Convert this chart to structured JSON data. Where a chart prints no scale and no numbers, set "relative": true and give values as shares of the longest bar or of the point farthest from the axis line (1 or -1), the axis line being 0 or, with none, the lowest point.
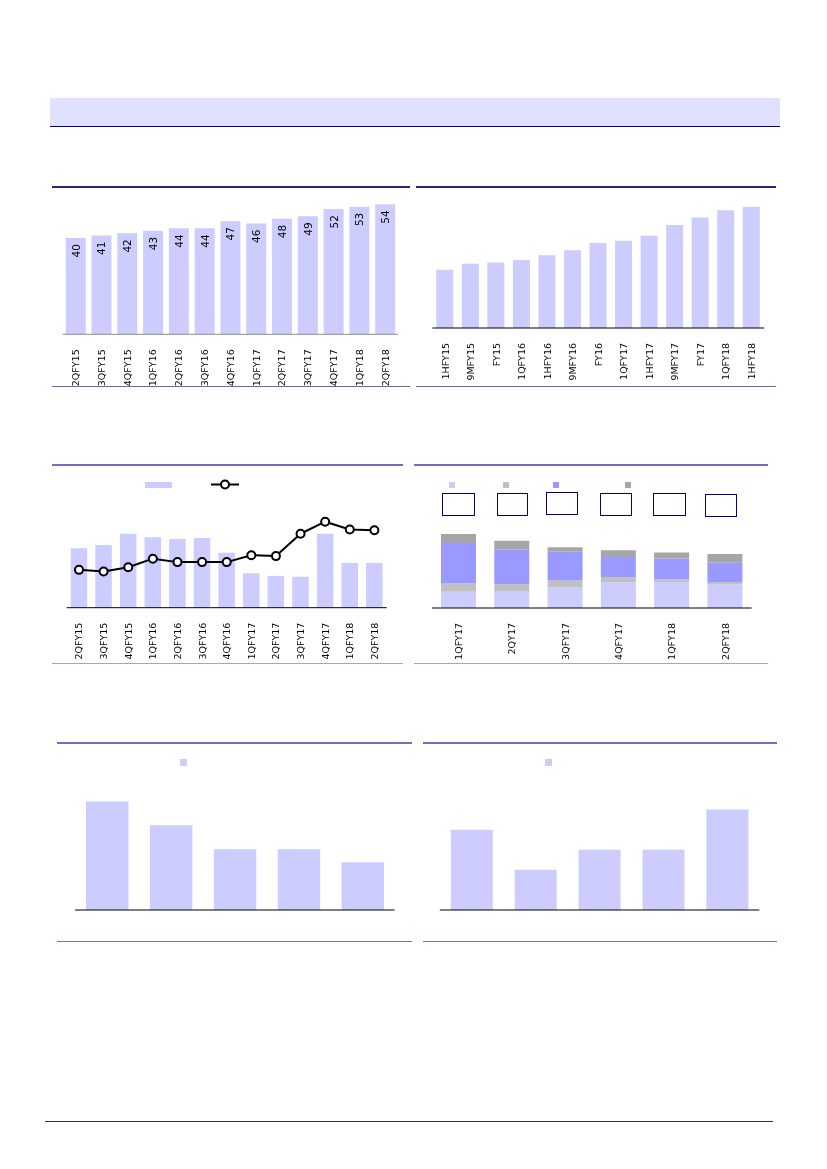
{
  "chart_data": [
    {
      "type": "bar",
      "categories": [
        "2QFY15",
        "3QFY15",
        "4QFY15",
        "1QFY16",
        "2QFY16",
        "3QFY16",
        "4QFY16",
        "1QFY17",
        "2QFY17",
        "3QFY17",
        "4QFY17",
        "1QFY18",
        "2QFY18"
      ],
      "values": [
        40,
        41,
        42,
        43,
        44,
        44,
        47,
        46,
        48,
        49,
        52,
        53,
        54
      ],
      "color": "#ccccff",
      "data_labels": true,
      "tick_labels": "x"
    },
    {
      "type": "bar",
      "categories": [
        "1HFY15",
        "9MFY15",
        "FY15",
        "1QFY16",
        "1HFY16",
        "9MFY16",
        "FY16",
        "1QFY17",
        "1HFY17",
        "9MFY17",
        "FY17",
        "1QFY18",
        "1HFY18"
      ],
      "values": [
        0.48,
        0.53,
        0.54,
        0.56,
        0.6,
        0.64,
        0.7,
        0.72,
        0.76,
        0.85,
        0.91,
        0.97,
        1
      ],
      "color": "#ccccff",
      "relative": true
    },
    {
      "type": "bar",
      "categories": [
        "2QFY15",
        "3QFY15",
        "4QFY15",
        "1QFY16",
        "2QFY16",
        "3QFY16",
        "4QFY16",
        "1QFY17",
        "2QFY17",
        "3QFY17",
        "4QFY17",
        "1QFY18",
        "2QFY18"
      ],
      "series": [
        {
          "color": "#ccccff",
          "values": [
            0.69,
            0.73,
            0.86,
            0.82,
            0.8,
            0.81,
            0.64,
            0.4,
            0.37,
            0.36,
            0.86,
            0.52,
            0.52
          ]
        },
        {
          "type": "line",
          "color": "#000000",
          "values": [
            0.44,
            0.42,
            0.47,
            0.57,
            0.53,
            0.53,
            0.53,
            0.61,
            0.6,
            0.86,
            1,
            0.91,
            0.9
          ]
        }
      ],
      "relative": true,
      "marker": "circle"
    },
    {
      "type": "bar",
      "stacked": true,
      "categories": [
        "1QFY17",
        "2QY17",
        "3QFY17",
        "4QFY17",
        "1QFY18",
        "2QFY18"
      ],
      "series": [
        {
          "color": "#ccccff",
          "values": [
            0.22,
            0.23,
            0.28,
            0.35,
            0.35,
            0.32
          ]
        },
        {
          "color": "#c0c0c0",
          "values": [
            0.11,
            0.09,
            0.09,
            0.07,
            0.04,
            0.03
          ]
        },
        {
          "color": "#9999ff",
          "values": [
            0.55,
            0.47,
            0.39,
            0.27,
            0.28,
            0.26
          ]
        },
        {
          "color": "#a6a6a6",
          "values": [
            0.12,
            0.12,
            0.06,
            0.09,
            0.08,
            0.12
          ]
        }
      ],
      "relative": true
    },
    {
      "type": "bar",
      "categories": [
        null,
        null,
        null,
        null,
        null
      ],
      "values": [
        1,
        0.78,
        0.56,
        0.56,
        0.44
      ],
      "color": "#ccccff",
      "relative": true
    },
    {
      "type": "bar",
      "categories": [
        null,
        null,
        null,
        null,
        null
      ],
      "values": [
        0.8,
        0.4,
        0.6,
        0.6,
        1
      ],
      "color": "#ccccff",
      "relative": true
    }
  ]
}
